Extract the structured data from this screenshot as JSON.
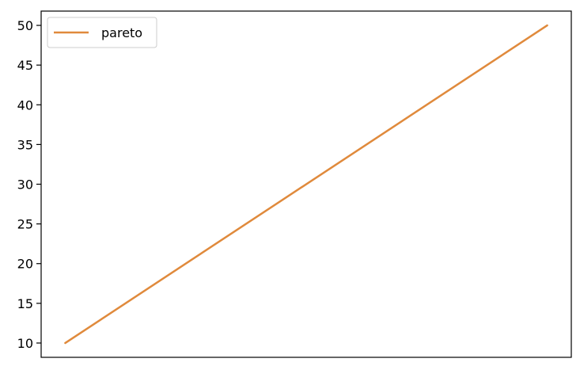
{
  "chart_data": {
    "type": "line",
    "title": "",
    "xlabel": "",
    "ylabel": "",
    "x": [
      0,
      1
    ],
    "series": [
      {
        "name": "pareto",
        "color": "#e08a3c",
        "values": [
          10,
          50
        ]
      }
    ],
    "xlim": [
      -0.05,
      1.05
    ],
    "ylim": [
      8.2,
      51.8
    ],
    "yticks": [
      10,
      15,
      20,
      25,
      30,
      35,
      40,
      45,
      50
    ],
    "xticks_visible": false,
    "grid": false,
    "legend": {
      "placement": "top-left",
      "entries": [
        "pareto"
      ]
    }
  }
}
